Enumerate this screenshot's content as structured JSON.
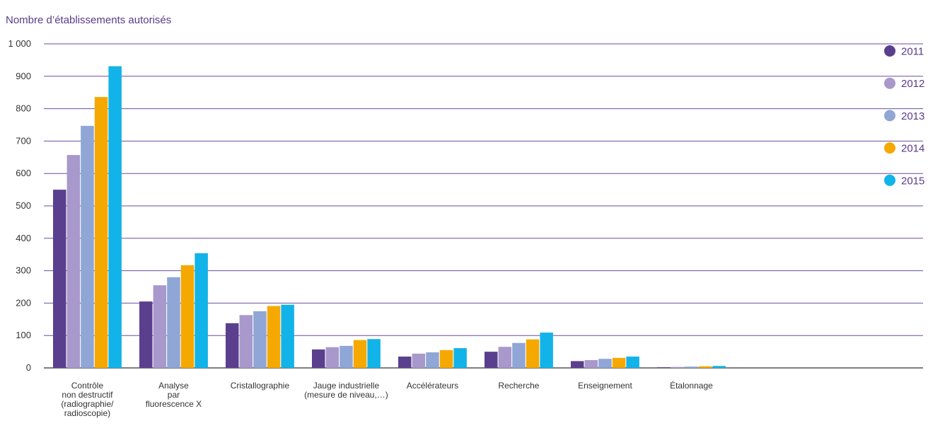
{
  "chart_data": {
    "type": "bar",
    "ylabel": "Nombre d’établissements autorisés",
    "ylim": [
      0,
      1000
    ],
    "yticks": [
      0,
      100,
      200,
      300,
      400,
      500,
      600,
      700,
      800,
      900,
      1000
    ],
    "ytick_labels": [
      "0",
      "100",
      "200",
      "300",
      "400",
      "500",
      "600",
      "700",
      "800",
      "900",
      "1 000"
    ],
    "categories": [
      [
        "Contrôle",
        "non destructif",
        "(radiographie/",
        "radioscopie)"
      ],
      [
        "Analyse",
        "par",
        "fluorescence X"
      ],
      [
        "Cristallographie"
      ],
      [
        "Jauge industrielle",
        "(mesure de niveau,…)"
      ],
      [
        "Accélérateurs"
      ],
      [
        "Recherche"
      ],
      [
        "Enseignement"
      ],
      [
        "Étalonnage"
      ]
    ],
    "series": [
      {
        "name": "2011",
        "color": "#5b3f8f",
        "values": [
          550,
          205,
          138,
          57,
          35,
          50,
          21,
          2
        ]
      },
      {
        "name": "2012",
        "color": "#a898cc",
        "values": [
          657,
          255,
          163,
          64,
          44,
          65,
          24,
          3
        ]
      },
      {
        "name": "2013",
        "color": "#8fa6d6",
        "values": [
          747,
          280,
          175,
          68,
          48,
          77,
          28,
          4
        ]
      },
      {
        "name": "2014",
        "color": "#f5a800",
        "values": [
          836,
          317,
          191,
          86,
          55,
          88,
          31,
          5
        ]
      },
      {
        "name": "2015",
        "color": "#12b3e8",
        "values": [
          931,
          354,
          195,
          89,
          61,
          109,
          35,
          6
        ]
      }
    ],
    "grid": true,
    "legend_position": "right"
  }
}
